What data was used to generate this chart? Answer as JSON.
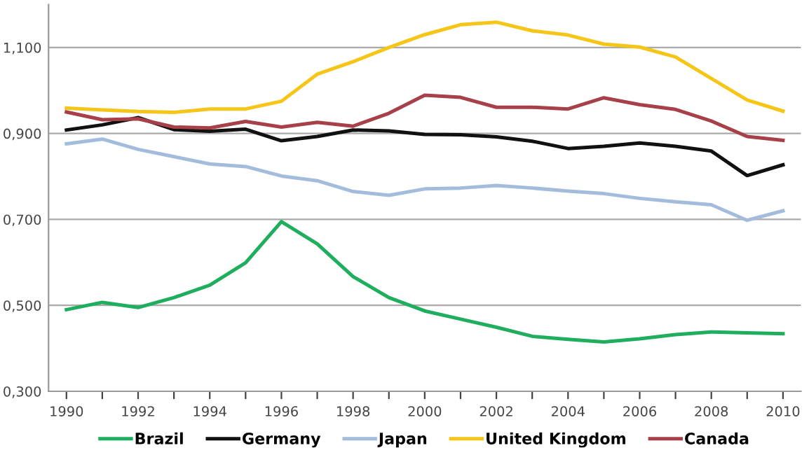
{
  "chart_data": {
    "type": "line",
    "x": [
      1990,
      1991,
      1992,
      1993,
      1994,
      1995,
      1996,
      1997,
      1998,
      1999,
      2000,
      2001,
      2002,
      2003,
      2004,
      2005,
      2006,
      2007,
      2008,
      2009,
      2010
    ],
    "series": [
      {
        "name": "Brazil",
        "color": "#1fae5d",
        "values": [
          0.49,
          0.507,
          0.495,
          0.518,
          0.547,
          0.599,
          0.695,
          0.643,
          0.567,
          0.518,
          0.487,
          0.468,
          0.449,
          0.428,
          0.421,
          0.415,
          0.422,
          0.432,
          0.438,
          0.436,
          0.434
        ]
      },
      {
        "name": "Germany",
        "color": "#111111",
        "values": [
          0.908,
          0.92,
          0.937,
          0.909,
          0.905,
          0.91,
          0.883,
          0.893,
          0.908,
          0.906,
          0.898,
          0.897,
          0.892,
          0.882,
          0.865,
          0.87,
          0.878,
          0.87,
          0.859,
          0.802,
          0.827
        ]
      },
      {
        "name": "Japan",
        "color": "#a3bcdc",
        "values": [
          0.876,
          0.887,
          0.863,
          0.846,
          0.829,
          0.823,
          0.801,
          0.79,
          0.765,
          0.756,
          0.771,
          0.773,
          0.779,
          0.773,
          0.766,
          0.76,
          0.749,
          0.741,
          0.734,
          0.698,
          0.72
        ]
      },
      {
        "name": "United Kingdom",
        "color": "#f5c518",
        "values": [
          0.959,
          0.955,
          0.951,
          0.949,
          0.957,
          0.957,
          0.975,
          1.038,
          1.067,
          1.1,
          1.13,
          1.153,
          1.159,
          1.139,
          1.129,
          1.108,
          1.101,
          1.078,
          1.028,
          0.978,
          0.952
        ]
      },
      {
        "name": "Canada",
        "color": "#a8404a",
        "values": [
          0.95,
          0.932,
          0.934,
          0.915,
          0.913,
          0.928,
          0.915,
          0.926,
          0.917,
          0.947,
          0.989,
          0.984,
          0.961,
          0.961,
          0.957,
          0.983,
          0.967,
          0.956,
          0.929,
          0.893,
          0.884
        ]
      }
    ],
    "xlim": [
      1989.5,
      2010.5
    ],
    "xticks": [
      1990,
      {
        "value": 1991,
        "label": null
      },
      1992,
      {
        "value": 1993,
        "label": null
      },
      1994,
      {
        "value": 1995,
        "label": null
      },
      1996,
      {
        "value": 1997,
        "label": null
      },
      1998,
      {
        "value": 1999,
        "label": null
      },
      2000,
      {
        "value": 2001,
        "label": null
      },
      2002,
      {
        "value": 2003,
        "label": null
      },
      2004,
      {
        "value": 2005,
        "label": null
      },
      2006,
      {
        "value": 2007,
        "label": null
      },
      2008,
      {
        "value": 2009,
        "label": null
      },
      2010
    ],
    "ylim": [
      0.3,
      1.2
    ],
    "yticks": [
      {
        "value": 0.3,
        "label": "0,300"
      },
      {
        "value": 0.5,
        "label": "0,500"
      },
      {
        "value": 0.7,
        "label": "0,700"
      },
      {
        "value": 0.9,
        "label": "0,900"
      },
      {
        "value": 1.1,
        "label": "1,100"
      }
    ],
    "grid": "y",
    "legend": "bottom",
    "marker": "none",
    "line_style": "solid"
  }
}
